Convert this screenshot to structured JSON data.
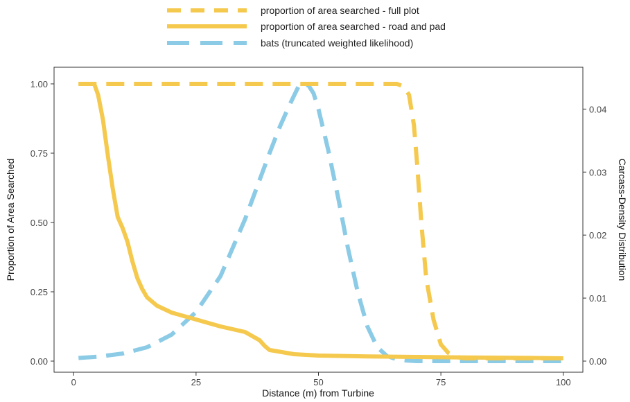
{
  "chart_data": {
    "type": "line",
    "xlabel": "Distance (m) from Turbine",
    "ylabel": "Proportion of Area Searched",
    "y2label": "Carcass-Density Distribution",
    "xlim": [
      -4,
      104
    ],
    "ylim": [
      -0.04,
      1.06
    ],
    "y2lim": [
      -0.00176,
      0.04664
    ],
    "xticks": [
      0,
      25,
      50,
      75,
      100
    ],
    "yticks": [
      0.0,
      0.25,
      0.5,
      0.75,
      1.0
    ],
    "y2ticks": [
      0.0,
      0.01,
      0.02,
      0.03,
      0.04
    ],
    "xtick_labels": [
      "0",
      "25",
      "50",
      "75",
      "100"
    ],
    "ytick_labels": [
      "0.00",
      "0.25",
      "0.50",
      "0.75",
      "1.00"
    ],
    "y2tick_labels": [
      "0.00",
      "0.01",
      "0.02",
      "0.03",
      "0.04"
    ],
    "grid": false,
    "legend_position": "top",
    "series": [
      {
        "name": "proportion of area searched - full plot",
        "axis": "left",
        "color": "#F5C94E",
        "dash": "long-dash",
        "x": [
          1,
          10,
          20,
          30,
          40,
          50,
          60,
          66,
          67.5,
          68.5,
          69.5,
          70.2,
          71,
          72,
          73.5,
          75,
          76.5,
          78,
          80,
          90,
          100
        ],
        "y": [
          1.0,
          1.0,
          1.0,
          1.0,
          1.0,
          1.0,
          1.0,
          1.0,
          0.99,
          0.96,
          0.85,
          0.7,
          0.5,
          0.3,
          0.15,
          0.06,
          0.03,
          0.015,
          0.01,
          0.01,
          0.01
        ]
      },
      {
        "name": "proportion of area searched - road and pad",
        "axis": "left",
        "color": "#F5C94E",
        "dash": "solid",
        "x": [
          1,
          3,
          4.2,
          5,
          6,
          7,
          8,
          9,
          10,
          11,
          12,
          13,
          14,
          15,
          17,
          20,
          25,
          30,
          35,
          36,
          37,
          38,
          39,
          40,
          45,
          50,
          60,
          70,
          80,
          90,
          100
        ],
        "y": [
          1.0,
          1.0,
          1.0,
          0.96,
          0.87,
          0.74,
          0.62,
          0.52,
          0.48,
          0.43,
          0.36,
          0.3,
          0.26,
          0.23,
          0.2,
          0.175,
          0.15,
          0.125,
          0.105,
          0.095,
          0.085,
          0.075,
          0.055,
          0.04,
          0.025,
          0.02,
          0.017,
          0.015,
          0.013,
          0.012,
          0.01
        ]
      },
      {
        "name": "bats (truncated weighted likelihood)",
        "axis": "right",
        "color": "#8CCBE6",
        "dash": "long-dash",
        "x": [
          1,
          5,
          10,
          15,
          20,
          25,
          30,
          35,
          40,
          42,
          44,
          46,
          47,
          48,
          49,
          50,
          52,
          54,
          56,
          58,
          60,
          62,
          64,
          66,
          68,
          70,
          75,
          80,
          90,
          100
        ],
        "y": [
          0.0005,
          0.0007,
          0.0012,
          0.0022,
          0.0042,
          0.0078,
          0.0135,
          0.0225,
          0.033,
          0.037,
          0.0405,
          0.0437,
          0.044,
          0.0437,
          0.0425,
          0.04,
          0.0335,
          0.026,
          0.018,
          0.011,
          0.0055,
          0.0022,
          0.0008,
          0.0003,
          0.0001,
          0.0,
          0.0,
          0.0,
          0.0,
          0.0
        ]
      }
    ]
  }
}
